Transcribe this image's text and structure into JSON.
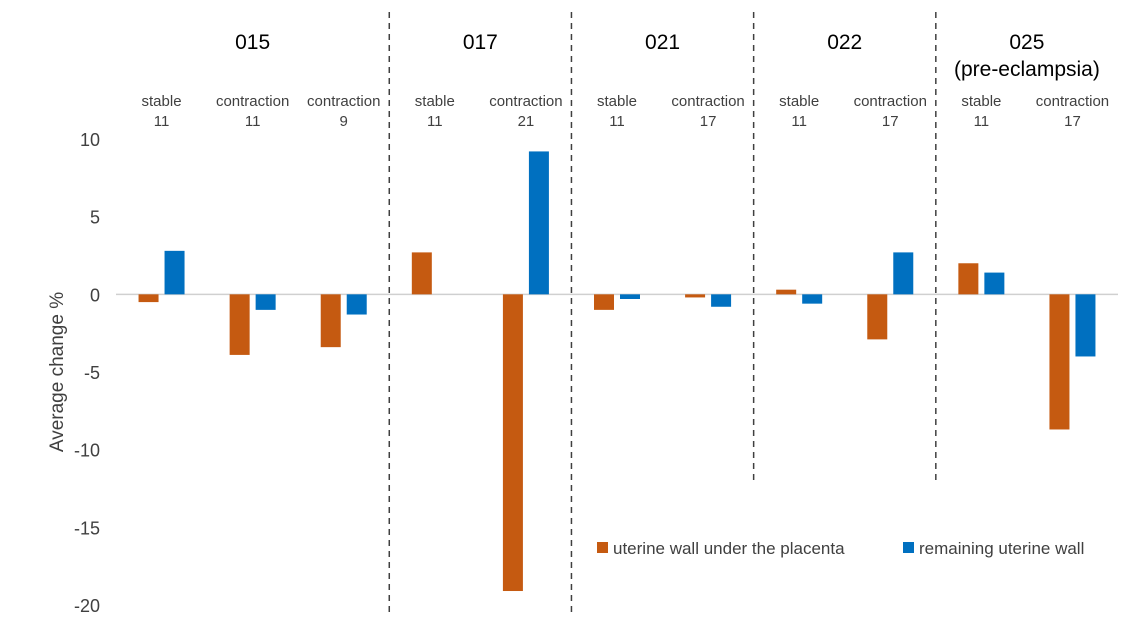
{
  "chart_data": {
    "type": "bar",
    "ylabel": "Average change %",
    "ylim": [
      -20,
      10
    ],
    "yticks": [
      10,
      5,
      0,
      -5,
      -10,
      -15,
      -20
    ],
    "grid": false,
    "legend_position": "bottom-right",
    "groups": [
      {
        "label": "015",
        "label_line2": "",
        "categories": [
          {
            "condition": "stable",
            "week": "11"
          },
          {
            "condition": "contraction",
            "week": "11"
          },
          {
            "condition": "contraction",
            "week": "9"
          }
        ]
      },
      {
        "label": "017",
        "label_line2": "",
        "categories": [
          {
            "condition": "stable",
            "week": "11"
          },
          {
            "condition": "contraction",
            "week": "21"
          }
        ]
      },
      {
        "label": "021",
        "label_line2": "",
        "categories": [
          {
            "condition": "stable",
            "week": "11"
          },
          {
            "condition": "contraction",
            "week": "17"
          }
        ]
      },
      {
        "label": "022",
        "label_line2": "",
        "categories": [
          {
            "condition": "stable",
            "week": "11"
          },
          {
            "condition": "contraction",
            "week": "17"
          }
        ]
      },
      {
        "label": "025",
        "label_line2": "(pre-eclampsia)",
        "categories": [
          {
            "condition": "stable",
            "week": "11"
          },
          {
            "condition": "contraction",
            "week": "17"
          }
        ]
      }
    ],
    "series": [
      {
        "name": "uterine wall under the placenta",
        "color": "#C55A11",
        "values": [
          -0.5,
          -3.9,
          -3.4,
          2.7,
          -19.1,
          -1.0,
          -0.2,
          0.3,
          -2.9,
          2.0,
          -8.7
        ]
      },
      {
        "name": "remaining uterine wall",
        "color": "#0070C0",
        "values": [
          2.8,
          -1.0,
          -1.3,
          0.0,
          9.2,
          -0.3,
          -0.8,
          -0.6,
          2.7,
          1.4,
          -4.0
        ]
      }
    ]
  }
}
